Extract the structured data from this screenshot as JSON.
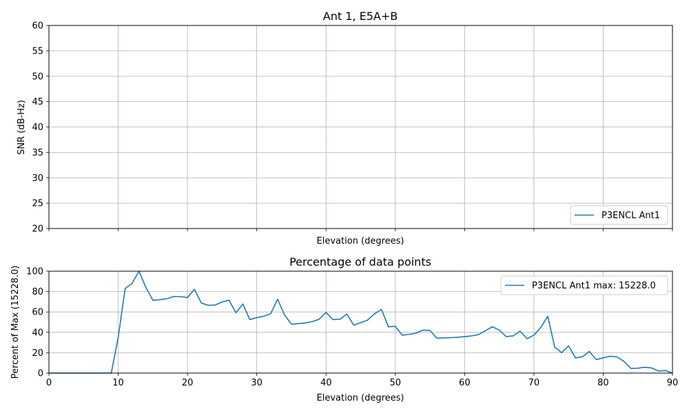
{
  "chart_data": [
    {
      "type": "line",
      "title": "Ant 1, E5A+B",
      "xlabel": "Elevation (degrees)",
      "ylabel": "SNR (dB-Hz)",
      "xlim": [
        0,
        90
      ],
      "ylim": [
        20,
        60
      ],
      "x_ticks": [
        0,
        10,
        20,
        30,
        40,
        50,
        60,
        70,
        80,
        90
      ],
      "y_ticks": [
        "20",
        "25",
        "30",
        "35",
        "40",
        "45",
        "50",
        "55",
        "60"
      ],
      "show_x_tick_labels": false,
      "grid": true,
      "legend_position": "lower-right",
      "series": [
        {
          "name": "P3ENCL Ant1",
          "color": "#1f77b4",
          "x": [],
          "y": []
        }
      ]
    },
    {
      "type": "line",
      "title": "Percentage of data points",
      "xlabel": "Elevation (degrees)",
      "ylabel": "Percent of Max (15228.0)",
      "xlim": [
        0,
        90
      ],
      "ylim": [
        0,
        100
      ],
      "x_ticks": [
        "0",
        "10",
        "20",
        "30",
        "40",
        "50",
        "60",
        "70",
        "80",
        "90"
      ],
      "y_ticks": [
        "0",
        "20",
        "40",
        "60",
        "80",
        "100"
      ],
      "show_x_tick_labels": true,
      "grid": true,
      "legend_position": "upper-right",
      "series": [
        {
          "name": "P3ENCL Ant1 max: 15228.0",
          "color": "#1f77b4",
          "x": [
            0,
            1,
            2,
            3,
            4,
            5,
            6,
            7,
            8,
            9,
            10,
            11,
            12,
            13,
            14,
            15,
            16,
            17,
            18,
            19,
            20,
            21,
            22,
            23,
            24,
            25,
            26,
            27,
            28,
            29,
            30,
            31,
            32,
            33,
            34,
            35,
            36,
            37,
            38,
            39,
            40,
            41,
            42,
            43,
            44,
            45,
            46,
            47,
            48,
            49,
            50,
            51,
            52,
            53,
            54,
            55,
            56,
            57,
            58,
            59,
            60,
            61,
            62,
            63,
            64,
            65,
            66,
            67,
            68,
            69,
            70,
            71,
            72,
            73,
            74,
            75,
            76,
            77,
            78,
            79,
            80,
            81,
            82,
            83,
            84,
            85,
            86,
            87,
            88,
            89,
            90
          ],
          "y": [
            0,
            0,
            0,
            0,
            0,
            0,
            0,
            0,
            0,
            0,
            35,
            83,
            88,
            100,
            84,
            71.5,
            72,
            73,
            75.2,
            75,
            74.2,
            82.2,
            68.8,
            66.5,
            66.8,
            69.8,
            71.5,
            59.2,
            67.8,
            52.5,
            54.5,
            55.8,
            58.2,
            72.6,
            57.2,
            48,
            48.5,
            49.2,
            50.5,
            52.8,
            59.5,
            52.5,
            52.8,
            58,
            47,
            49.5,
            52,
            58.2,
            62.5,
            45.5,
            45.8,
            37.2,
            38,
            39.2,
            42.2,
            41.8,
            34.2,
            34.5,
            34.8,
            35.2,
            35.8,
            36.5,
            37.8,
            41.5,
            45.5,
            42.2,
            35.8,
            36.5,
            41.2,
            33.8,
            37.2,
            44.8,
            55.8,
            25.5,
            20,
            26.8,
            15,
            16,
            21.2,
            13.2,
            15,
            16.5,
            15.8,
            11.5,
            4.5,
            4.8,
            5.8,
            5,
            2,
            2.5,
            0
          ]
        }
      ]
    }
  ]
}
